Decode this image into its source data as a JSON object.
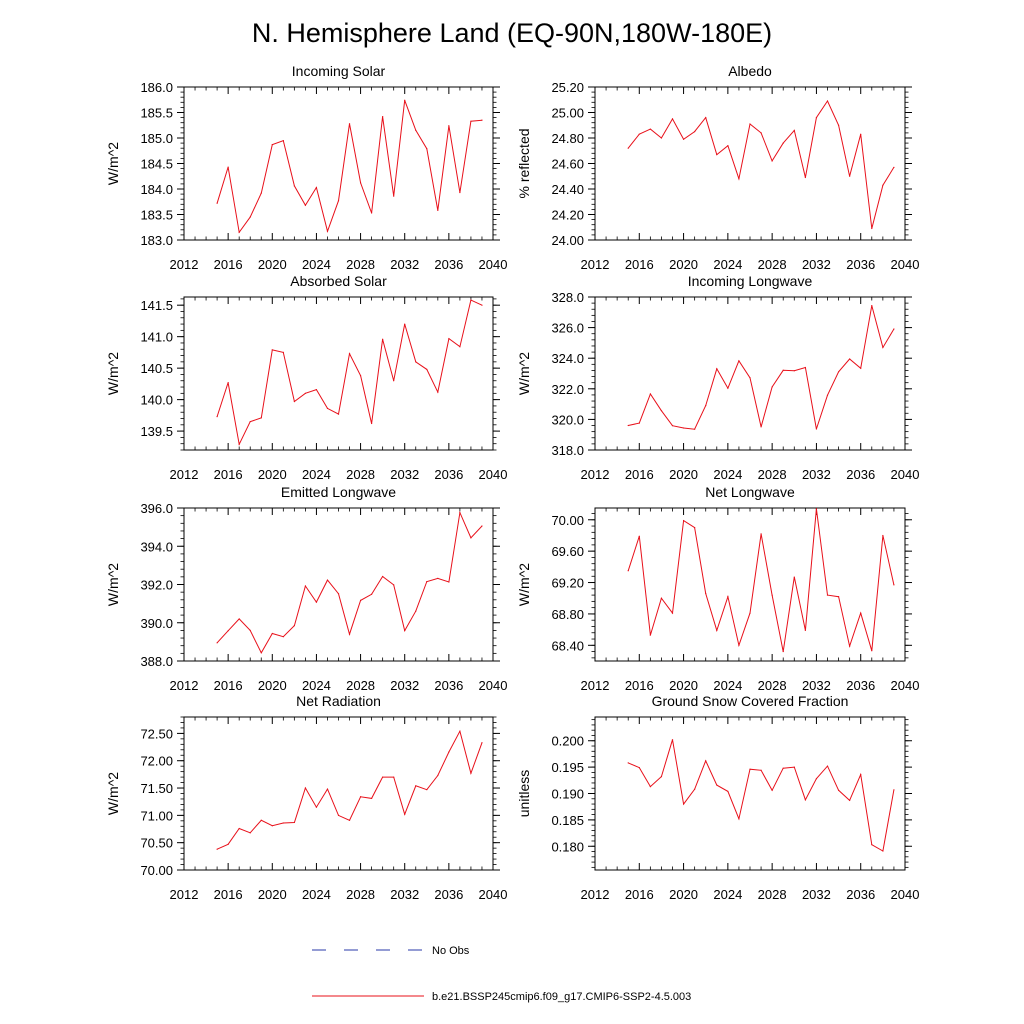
{
  "figure": {
    "title": "N. Hemisphere Land (EQ-90N,180W-180E)",
    "line_color": "#e8101a",
    "obs_color": "#2a3aa8"
  },
  "legend": {
    "items": [
      {
        "label": "No Obs",
        "style": "dashed",
        "color": "#2a3aa8"
      },
      {
        "label": "b.e21.BSSP245cmip6.f09_g17.CMIP6-SSP2-4.5.003",
        "style": "solid",
        "color": "#e8101a"
      }
    ]
  },
  "chart_data": [
    {
      "type": "line",
      "title": "Incoming Solar",
      "ylabel": "W/m^2",
      "xlabel": "",
      "xlim": [
        2012,
        2040
      ],
      "ylim": [
        183.0,
        186.0
      ],
      "xticks": [
        2012,
        2016,
        2020,
        2024,
        2028,
        2032,
        2036,
        2040
      ],
      "xtick_labels": [
        "2012",
        "2016",
        "2020",
        "2024",
        "2028",
        "2032",
        "2036",
        "2040"
      ],
      "yticks": [
        183.0,
        183.5,
        184.0,
        184.5,
        185.0,
        185.5,
        186.0
      ],
      "ytick_labels": [
        "183.0",
        "183.5",
        "184.0",
        "184.5",
        "185.0",
        "185.5",
        "186.0"
      ],
      "x": [
        2015,
        2016,
        2017,
        2018,
        2019,
        2020,
        2021,
        2022,
        2023,
        2024,
        2025,
        2026,
        2027,
        2028,
        2029,
        2030,
        2031,
        2032,
        2033,
        2034,
        2035,
        2036,
        2037,
        2038,
        2039
      ],
      "series": [
        {
          "name": "b.e21.BSSP245cmip6.f09_g17.CMIP6-SSP2-4.5.003",
          "values": [
            183.72,
            184.43,
            183.15,
            183.45,
            183.92,
            184.87,
            184.95,
            184.06,
            183.68,
            184.03,
            183.17,
            183.77,
            185.28,
            184.12,
            183.53,
            185.42,
            183.86,
            185.74,
            185.15,
            184.79,
            183.58,
            185.24,
            183.93,
            185.33,
            185.35
          ]
        }
      ]
    },
    {
      "type": "line",
      "title": "Albedo",
      "ylabel": "% reflected",
      "xlabel": "",
      "xlim": [
        2012,
        2040
      ],
      "ylim": [
        24.0,
        25.2
      ],
      "xticks": [
        2012,
        2016,
        2020,
        2024,
        2028,
        2032,
        2036,
        2040
      ],
      "xtick_labels": [
        "2012",
        "2016",
        "2020",
        "2024",
        "2028",
        "2032",
        "2036",
        "2040"
      ],
      "yticks": [
        24.0,
        24.2,
        24.4,
        24.6,
        24.8,
        25.0,
        25.2
      ],
      "ytick_labels": [
        "24.00",
        "24.20",
        "24.40",
        "24.60",
        "24.80",
        "25.00",
        "25.20"
      ],
      "x": [
        2015,
        2016,
        2017,
        2018,
        2019,
        2020,
        2021,
        2022,
        2023,
        2024,
        2025,
        2026,
        2027,
        2028,
        2029,
        2030,
        2031,
        2032,
        2033,
        2034,
        2035,
        2036,
        2037,
        2038,
        2039
      ],
      "series": [
        {
          "name": "b.e21.BSSP245cmip6.f09_g17.CMIP6-SSP2-4.5.003",
          "values": [
            24.72,
            24.83,
            24.87,
            24.8,
            24.95,
            24.79,
            24.85,
            24.96,
            24.67,
            24.74,
            24.48,
            24.91,
            24.84,
            24.62,
            24.76,
            24.86,
            24.49,
            24.96,
            25.09,
            24.9,
            24.5,
            24.83,
            24.09,
            24.43,
            24.57
          ]
        }
      ]
    },
    {
      "type": "line",
      "title": "Absorbed Solar",
      "ylabel": "W/m^2",
      "xlabel": "",
      "xlim": [
        2012,
        2040
      ],
      "ylim": [
        139.2,
        141.63
      ],
      "xticks": [
        2012,
        2016,
        2020,
        2024,
        2028,
        2032,
        2036,
        2040
      ],
      "xtick_labels": [
        "2012",
        "2016",
        "2020",
        "2024",
        "2028",
        "2032",
        "2036",
        "2040"
      ],
      "yticks": [
        139.5,
        140.0,
        140.5,
        141.0,
        141.5
      ],
      "ytick_labels": [
        "139.5",
        "140.0",
        "140.5",
        "141.0",
        "141.5"
      ],
      "x": [
        2015,
        2016,
        2017,
        2018,
        2019,
        2020,
        2021,
        2022,
        2023,
        2024,
        2025,
        2026,
        2027,
        2028,
        2029,
        2030,
        2031,
        2032,
        2033,
        2034,
        2035,
        2036,
        2037,
        2038,
        2039
      ],
      "series": [
        {
          "name": "b.e21.BSSP245cmip6.f09_g17.CMIP6-SSP2-4.5.003",
          "values": [
            139.73,
            140.27,
            139.29,
            139.65,
            139.71,
            140.79,
            140.75,
            139.97,
            140.1,
            140.16,
            139.86,
            139.77,
            140.73,
            140.38,
            139.62,
            140.96,
            140.3,
            141.2,
            140.6,
            140.48,
            140.12,
            140.97,
            140.84,
            141.58,
            141.5
          ]
        }
      ]
    },
    {
      "type": "line",
      "title": "Incoming Longwave",
      "ylabel": "W/m^2",
      "xlabel": "",
      "xlim": [
        2012,
        2040
      ],
      "ylim": [
        318.0,
        328.0
      ],
      "xticks": [
        2012,
        2016,
        2020,
        2024,
        2028,
        2032,
        2036,
        2040
      ],
      "xtick_labels": [
        "2012",
        "2016",
        "2020",
        "2024",
        "2028",
        "2032",
        "2036",
        "2040"
      ],
      "yticks": [
        318.0,
        320.0,
        322.0,
        324.0,
        326.0,
        328.0
      ],
      "ytick_labels": [
        "318.0",
        "320.0",
        "322.0",
        "324.0",
        "326.0",
        "328.0"
      ],
      "x": [
        2015,
        2016,
        2017,
        2018,
        2019,
        2020,
        2021,
        2022,
        2023,
        2024,
        2025,
        2026,
        2027,
        2028,
        2029,
        2030,
        2031,
        2032,
        2033,
        2034,
        2035,
        2036,
        2037,
        2038,
        2039
      ],
      "series": [
        {
          "name": "b.e21.BSSP245cmip6.f09_g17.CMIP6-SSP2-4.5.003",
          "values": [
            319.6,
            319.76,
            321.66,
            320.57,
            319.59,
            319.44,
            319.36,
            320.9,
            323.31,
            322.04,
            323.83,
            322.72,
            319.51,
            322.12,
            323.21,
            323.18,
            323.39,
            319.37,
            321.58,
            323.11,
            323.95,
            323.34,
            327.44,
            324.7,
            325.91
          ]
        }
      ]
    },
    {
      "type": "line",
      "title": "Emitted Longwave",
      "ylabel": "W/m^2",
      "xlabel": "",
      "xlim": [
        2012,
        2040
      ],
      "ylim": [
        388.0,
        396.0
      ],
      "xticks": [
        2012,
        2016,
        2020,
        2024,
        2028,
        2032,
        2036,
        2040
      ],
      "xtick_labels": [
        "2012",
        "2016",
        "2020",
        "2024",
        "2028",
        "2032",
        "2036",
        "2040"
      ],
      "yticks": [
        388.0,
        390.0,
        392.0,
        394.0,
        396.0
      ],
      "ytick_labels": [
        "388.0",
        "390.0",
        "392.0",
        "394.0",
        "396.0"
      ],
      "x": [
        2015,
        2016,
        2017,
        2018,
        2019,
        2020,
        2021,
        2022,
        2023,
        2024,
        2025,
        2026,
        2027,
        2028,
        2029,
        2030,
        2031,
        2032,
        2033,
        2034,
        2035,
        2036,
        2037,
        2038,
        2039
      ],
      "series": [
        {
          "name": "b.e21.BSSP245cmip6.f09_g17.CMIP6-SSP2-4.5.003",
          "values": [
            388.95,
            389.58,
            390.2,
            389.6,
            388.43,
            389.44,
            389.27,
            389.85,
            391.92,
            391.08,
            392.23,
            391.52,
            389.4,
            391.17,
            391.49,
            392.42,
            391.98,
            389.59,
            390.61,
            392.15,
            392.32,
            392.13,
            395.76,
            394.44,
            395.06
          ]
        }
      ]
    },
    {
      "type": "line",
      "title": "Net Longwave",
      "ylabel": "W/m^2",
      "xlabel": "",
      "xlim": [
        2012,
        2040
      ],
      "ylim": [
        68.2,
        70.15
      ],
      "xticks": [
        2012,
        2016,
        2020,
        2024,
        2028,
        2032,
        2036,
        2040
      ],
      "xtick_labels": [
        "2012",
        "2016",
        "2020",
        "2024",
        "2028",
        "2032",
        "2036",
        "2040"
      ],
      "yticks": [
        68.4,
        68.8,
        69.2,
        69.6,
        70.0
      ],
      "ytick_labels": [
        "68.40",
        "68.80",
        "69.20",
        "69.60",
        "70.00"
      ],
      "x": [
        2015,
        2016,
        2017,
        2018,
        2019,
        2020,
        2021,
        2022,
        2023,
        2024,
        2025,
        2026,
        2027,
        2028,
        2029,
        2030,
        2031,
        2032,
        2033,
        2034,
        2035,
        2036,
        2037,
        2038,
        2039
      ],
      "series": [
        {
          "name": "b.e21.BSSP245cmip6.f09_g17.CMIP6-SSP2-4.5.003",
          "values": [
            69.35,
            69.79,
            68.53,
            69.0,
            68.81,
            69.99,
            69.9,
            69.06,
            68.59,
            69.02,
            68.4,
            68.81,
            69.82,
            69.04,
            68.32,
            69.27,
            68.59,
            70.14,
            69.04,
            69.02,
            68.39,
            68.81,
            68.33,
            69.8,
            69.17
          ]
        }
      ]
    },
    {
      "type": "line",
      "title": "Net Radiation",
      "ylabel": "W/m^2",
      "xlabel": "",
      "xlim": [
        2012,
        2040
      ],
      "ylim": [
        70.0,
        72.8
      ],
      "xticks": [
        2012,
        2016,
        2020,
        2024,
        2028,
        2032,
        2036,
        2040
      ],
      "xtick_labels": [
        "2012",
        "2016",
        "2020",
        "2024",
        "2028",
        "2032",
        "2036",
        "2040"
      ],
      "yticks": [
        70.0,
        70.5,
        71.0,
        71.5,
        72.0,
        72.5
      ],
      "ytick_labels": [
        "70.00",
        "70.50",
        "71.00",
        "71.50",
        "72.00",
        "72.50"
      ],
      "x": [
        2015,
        2016,
        2017,
        2018,
        2019,
        2020,
        2021,
        2022,
        2023,
        2024,
        2025,
        2026,
        2027,
        2028,
        2029,
        2030,
        2031,
        2032,
        2033,
        2034,
        2035,
        2036,
        2037,
        2038,
        2039
      ],
      "series": [
        {
          "name": "b.e21.BSSP245cmip6.f09_g17.CMIP6-SSP2-4.5.003",
          "values": [
            70.38,
            70.47,
            70.76,
            70.68,
            70.91,
            70.81,
            70.86,
            70.87,
            71.5,
            71.15,
            71.48,
            71.0,
            70.91,
            71.34,
            71.31,
            71.7,
            71.7,
            71.02,
            71.54,
            71.47,
            71.73,
            72.16,
            72.54,
            71.77,
            72.33
          ]
        }
      ]
    },
    {
      "type": "line",
      "title": "Ground Snow Covered Fraction",
      "ylabel": "unitless",
      "xlabel": "",
      "xlim": [
        2012,
        2040
      ],
      "ylim": [
        0.1755,
        0.2045
      ],
      "xticks": [
        2012,
        2016,
        2020,
        2024,
        2028,
        2032,
        2036,
        2040
      ],
      "xtick_labels": [
        "2012",
        "2016",
        "2020",
        "2024",
        "2028",
        "2032",
        "2036",
        "2040"
      ],
      "yticks": [
        0.18,
        0.185,
        0.19,
        0.195,
        0.2
      ],
      "ytick_labels": [
        "0.180",
        "0.185",
        "0.190",
        "0.195",
        "0.200"
      ],
      "x": [
        2015,
        2016,
        2017,
        2018,
        2019,
        2020,
        2021,
        2022,
        2023,
        2024,
        2025,
        2026,
        2027,
        2028,
        2029,
        2030,
        2031,
        2032,
        2033,
        2034,
        2035,
        2036,
        2037,
        2038,
        2039
      ],
      "series": [
        {
          "name": "b.e21.BSSP245cmip6.f09_g17.CMIP6-SSP2-4.5.003",
          "values": [
            0.1958,
            0.1949,
            0.1913,
            0.1932,
            0.2002,
            0.188,
            0.1908,
            0.1962,
            0.1916,
            0.1904,
            0.1852,
            0.1946,
            0.1944,
            0.1906,
            0.1948,
            0.195,
            0.1888,
            0.1928,
            0.1952,
            0.1906,
            0.1887,
            0.1936,
            0.1803,
            0.1791,
            0.1907
          ]
        }
      ]
    }
  ]
}
